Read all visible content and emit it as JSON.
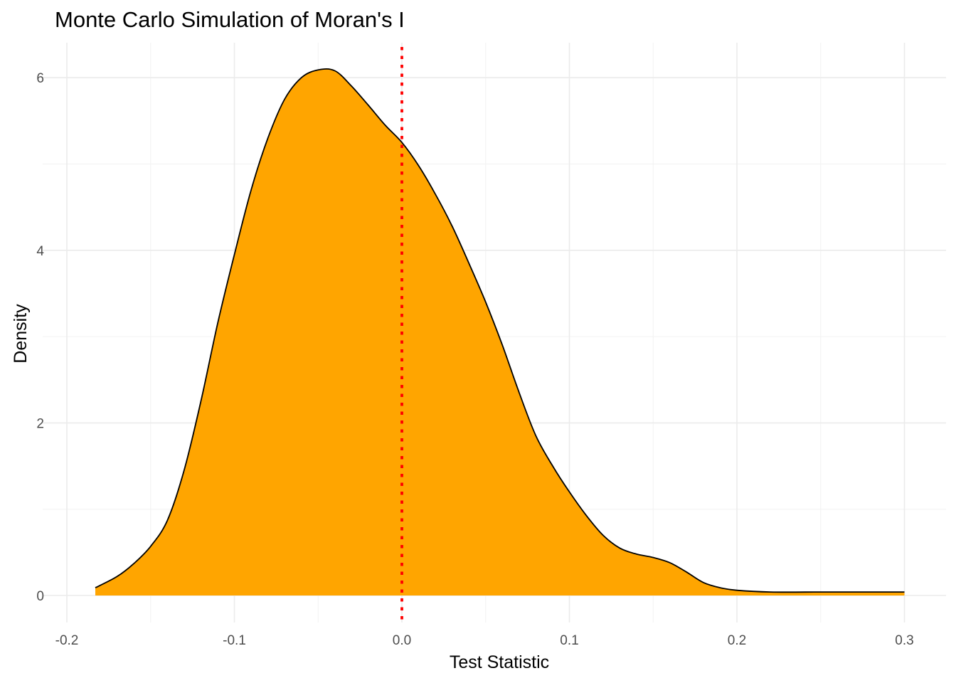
{
  "chart_data": {
    "type": "area",
    "title": "Monte Carlo Simulation of Moran's I",
    "xlabel": "Test Statistic",
    "ylabel": "Density",
    "xlim": [
      -0.2,
      0.3
    ],
    "ylim": [
      0,
      6
    ],
    "x_ticks": [
      -0.2,
      -0.1,
      0.0,
      0.1,
      0.2,
      0.3
    ],
    "x_tick_labels": [
      "-0.2",
      "-0.1",
      "0.0",
      "0.1",
      "0.2",
      "0.3"
    ],
    "y_ticks": [
      0,
      2,
      4,
      6
    ],
    "y_tick_labels": [
      "0",
      "2",
      "4",
      "6"
    ],
    "grid": true,
    "legend": "none",
    "fill_color": "#FFA500",
    "line_color": "#000000",
    "reference_line": {
      "x": 0.0,
      "color": "#FF0000",
      "style": "dotted"
    },
    "series": [
      {
        "x": [
          -0.183,
          -0.17,
          -0.16,
          -0.15,
          -0.14,
          -0.13,
          -0.12,
          -0.11,
          -0.1,
          -0.09,
          -0.08,
          -0.07,
          -0.06,
          -0.05,
          -0.04,
          -0.03,
          -0.02,
          -0.01,
          0.0,
          0.01,
          0.02,
          0.03,
          0.04,
          0.05,
          0.06,
          0.07,
          0.08,
          0.09,
          0.1,
          0.11,
          0.12,
          0.13,
          0.14,
          0.15,
          0.16,
          0.17,
          0.18,
          0.19,
          0.2,
          0.22,
          0.25,
          0.27,
          0.3
        ],
        "y": [
          0.09,
          0.22,
          0.37,
          0.57,
          0.87,
          1.45,
          2.25,
          3.15,
          3.95,
          4.7,
          5.3,
          5.75,
          6.0,
          6.09,
          6.08,
          5.9,
          5.68,
          5.45,
          5.25,
          4.98,
          4.65,
          4.28,
          3.85,
          3.4,
          2.9,
          2.35,
          1.85,
          1.5,
          1.2,
          0.93,
          0.7,
          0.55,
          0.48,
          0.44,
          0.38,
          0.27,
          0.15,
          0.09,
          0.06,
          0.04,
          0.04,
          0.04,
          0.04
        ]
      }
    ]
  }
}
